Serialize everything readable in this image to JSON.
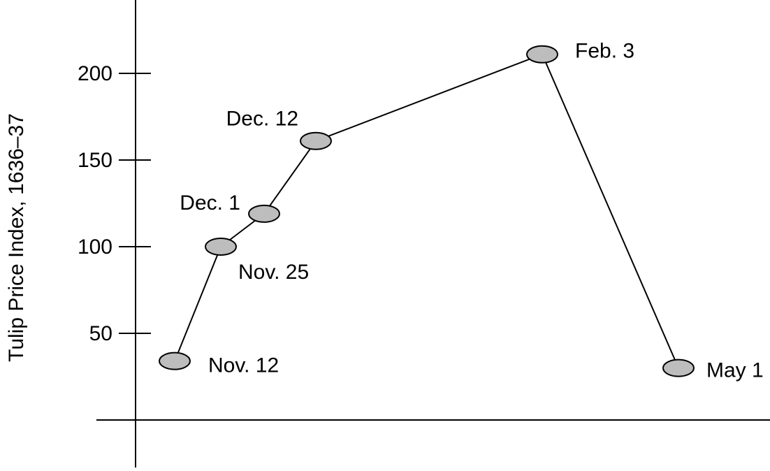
{
  "chart_data": {
    "type": "line",
    "title": "",
    "xlabel": "",
    "ylabel": "Tulip Price Index, 1636–37",
    "ylim": [
      0,
      265
    ],
    "yticks": [
      50,
      100,
      150,
      200
    ],
    "grid": false,
    "legend": "none",
    "colors": {
      "marker_fill": "#bdbdbd",
      "line": "#000000"
    },
    "series": [
      {
        "points": [
          {
            "x": "1636-11-12",
            "y": 34,
            "label": "Nov. 12"
          },
          {
            "x": "1636-11-25",
            "y": 100,
            "label": "Nov. 25"
          },
          {
            "x": "1636-12-01",
            "y": 119,
            "label": "Dec. 1"
          },
          {
            "x": "1636-12-12",
            "y": 161,
            "label": "Dec. 12"
          },
          {
            "x": "1637-02-03",
            "y": 211,
            "label": "Feb. 3"
          },
          {
            "x": "1637-05-01",
            "y": 30,
            "label": "May 1"
          }
        ]
      }
    ]
  }
}
